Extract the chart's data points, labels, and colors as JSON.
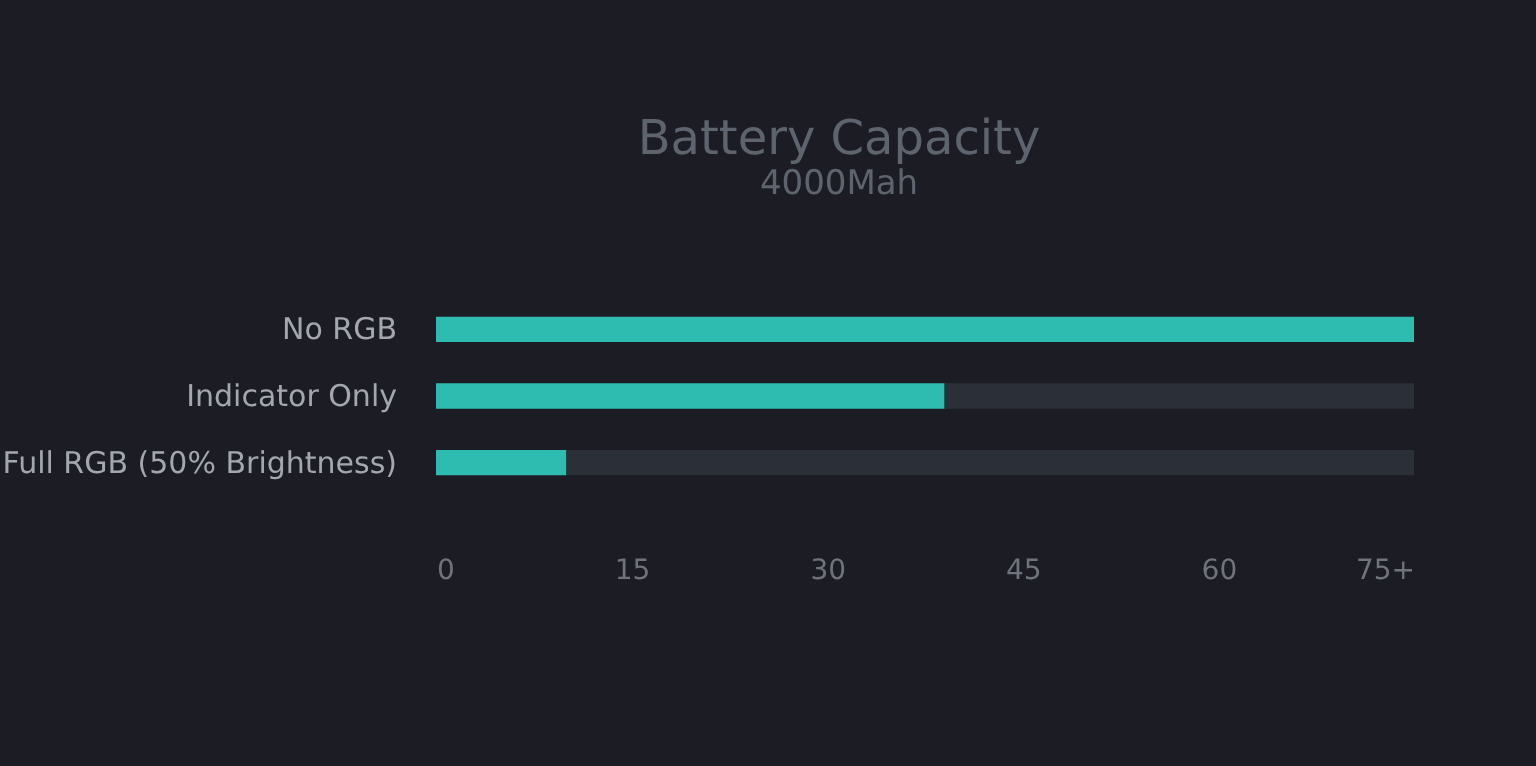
{
  "chart_data": {
    "type": "bar",
    "orientation": "horizontal",
    "stacked": true,
    "title": "Battery Capacity",
    "subtitle": "4000Mah",
    "categories": [
      "No RGB",
      "Indicator Only",
      "Full RGB (50% Brightness)"
    ],
    "series": [
      {
        "color": "#2fbcb0",
        "values": [
          75,
          39,
          10
        ]
      },
      {
        "color": "#2b2f37",
        "values": [
          0,
          36,
          65
        ]
      }
    ],
    "xlim": [
      0,
      75
    ],
    "xticks": [
      0,
      15,
      30,
      45,
      60,
      {
        "value": 75,
        "label": "75+"
      }
    ],
    "grid": false,
    "legend": false
  }
}
